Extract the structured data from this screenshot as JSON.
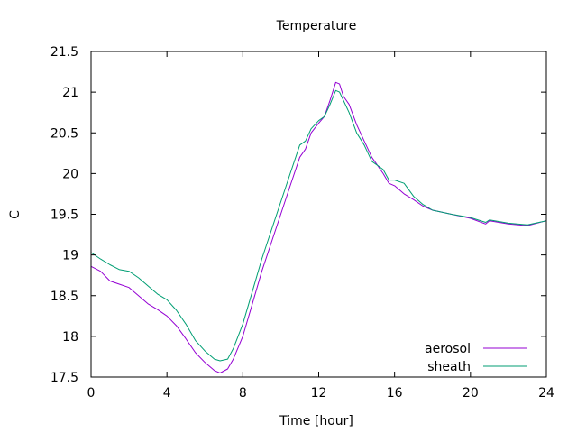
{
  "chart_data": {
    "type": "line",
    "title": "Temperature",
    "xlabel": "Time [hour]",
    "ylabel": "C",
    "xlim": [
      0,
      24
    ],
    "ylim": [
      17.5,
      21.5
    ],
    "xticks": [
      0,
      4,
      8,
      12,
      16,
      20,
      24
    ],
    "yticks": [
      17.5,
      18,
      18.5,
      19,
      19.5,
      20,
      20.5,
      21,
      21.5
    ],
    "grid": false,
    "legend_position": "bottom-right",
    "series": [
      {
        "name": "aerosol",
        "color": "#9400d3",
        "x": [
          0,
          0.5,
          1,
          1.5,
          2,
          2.5,
          3,
          3.5,
          4,
          4.5,
          5,
          5.5,
          6,
          6.5,
          6.8,
          7.2,
          7.5,
          8,
          8.5,
          9,
          9.5,
          10,
          10.5,
          11,
          11.3,
          11.6,
          12,
          12.3,
          12.6,
          12.9,
          13.1,
          13.3,
          13.6,
          14,
          14.4,
          14.8,
          15.1,
          15.4,
          15.7,
          16,
          16.5,
          17,
          17.5,
          18,
          19,
          20,
          20.8,
          21,
          22,
          23,
          24
        ],
        "y": [
          18.86,
          18.8,
          18.68,
          18.64,
          18.6,
          18.5,
          18.4,
          18.33,
          18.25,
          18.13,
          17.97,
          17.8,
          17.68,
          17.58,
          17.55,
          17.6,
          17.72,
          18.0,
          18.4,
          18.8,
          19.15,
          19.5,
          19.85,
          20.2,
          20.3,
          20.5,
          20.62,
          20.7,
          20.9,
          21.12,
          21.1,
          20.95,
          20.85,
          20.6,
          20.4,
          20.2,
          20.1,
          20.0,
          19.88,
          19.85,
          19.75,
          19.68,
          19.6,
          19.55,
          19.5,
          19.45,
          19.38,
          19.42,
          19.38,
          19.36,
          19.42
        ]
      },
      {
        "name": "sheath",
        "color": "#009e73",
        "x": [
          0,
          0.5,
          1,
          1.5,
          2,
          2.5,
          3,
          3.5,
          4,
          4.5,
          5,
          5.5,
          6,
          6.5,
          6.8,
          7.2,
          7.5,
          8,
          8.5,
          9,
          9.5,
          10,
          10.5,
          11,
          11.3,
          11.6,
          12,
          12.3,
          12.6,
          12.9,
          13.1,
          13.3,
          13.6,
          14,
          14.4,
          14.8,
          15.1,
          15.4,
          15.7,
          16,
          16.5,
          17,
          17.5,
          18,
          19,
          20,
          20.8,
          21,
          22,
          23,
          24
        ],
        "y": [
          19.03,
          18.95,
          18.88,
          18.82,
          18.8,
          18.72,
          18.62,
          18.52,
          18.45,
          18.32,
          18.15,
          17.95,
          17.82,
          17.72,
          17.7,
          17.72,
          17.85,
          18.15,
          18.55,
          18.95,
          19.3,
          19.65,
          20.0,
          20.35,
          20.4,
          20.55,
          20.65,
          20.7,
          20.85,
          21.02,
          21.0,
          20.9,
          20.75,
          20.5,
          20.35,
          20.15,
          20.1,
          20.05,
          19.92,
          19.92,
          19.88,
          19.72,
          19.62,
          19.55,
          19.5,
          19.46,
          19.4,
          19.43,
          19.39,
          19.37,
          19.42
        ]
      }
    ]
  }
}
